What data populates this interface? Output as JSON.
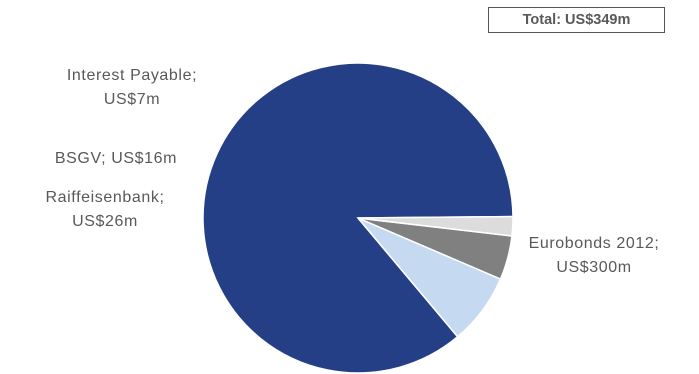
{
  "total_label": "Total: US$349m",
  "chart_data": {
    "type": "pie",
    "categories": [
      "Eurobonds 2012",
      "Raiffeisenbank",
      "BSGV",
      "Interest Payable"
    ],
    "values": [
      300,
      26,
      16,
      7
    ],
    "colors": [
      "#253f87",
      "#c5daf1",
      "#808080",
      "#dcdcdc"
    ],
    "slice_labels": [
      [
        "Eurobonds 2012;",
        "US$300m"
      ],
      [
        "Raiffeisenbank;",
        "US$26m"
      ],
      [
        "BSGV; US$16m"
      ],
      [
        "Interest Payable;",
        "US$7m"
      ]
    ],
    "total": 349
  }
}
